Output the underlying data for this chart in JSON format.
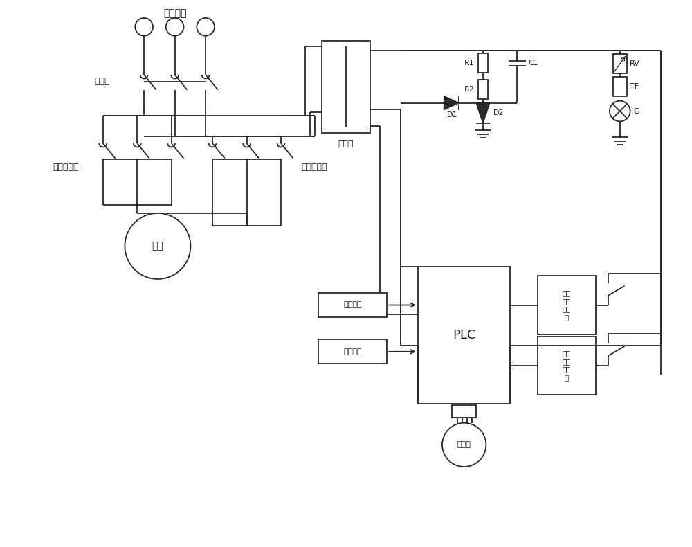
{
  "bg_color": "#ffffff",
  "line_color": "#2a2a2a",
  "text_color": "#1a1a1a",
  "labels": {
    "control_power": "控制电源",
    "main_switch": "总开关",
    "fwd_contactor": "正转接触器",
    "rev_contactor": "反转接触器",
    "transformer": "变压器",
    "motor": "电机",
    "R1": "R1",
    "R2": "R2",
    "C1": "C1",
    "D1": "D1",
    "D2": "D2",
    "RV": "RV",
    "TF": "TF",
    "G": "G",
    "PLC": "PLC",
    "fwd_switch": "正转开关",
    "rev_switch": "反转开关",
    "fwd_coil": "正转\n接触\n器线\n圈",
    "rev_coil": "反转\n接触\n器线\n圈",
    "encoder": "编码器"
  },
  "lw": 1.3
}
